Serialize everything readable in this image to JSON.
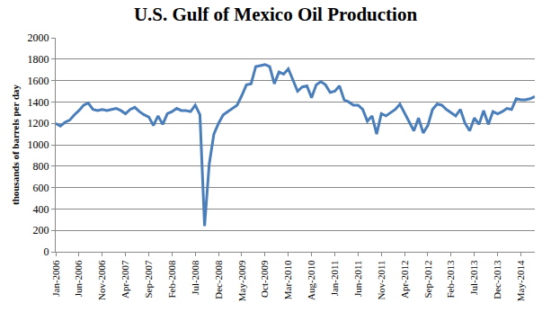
{
  "chart_data": {
    "type": "line",
    "title": "U.S. Gulf of Mexico Oil Production",
    "y_label": "thousands of barrels per day",
    "categories": [
      "Jan-2006",
      null,
      null,
      null,
      null,
      "Jun-2006",
      null,
      null,
      null,
      null,
      "Nov-2006",
      null,
      null,
      null,
      null,
      "Apr-2007",
      null,
      null,
      null,
      null,
      "Sep-2007",
      null,
      null,
      null,
      null,
      "Feb-2008",
      null,
      null,
      null,
      null,
      "Jul-2008",
      null,
      null,
      null,
      null,
      "Dec-2008",
      null,
      null,
      null,
      null,
      "May-2009",
      null,
      null,
      null,
      null,
      "Oct-2009",
      null,
      null,
      null,
      null,
      "Mar-2010",
      null,
      null,
      null,
      null,
      "Aug-2010",
      null,
      null,
      null,
      null,
      "Jan-2011",
      null,
      null,
      null,
      null,
      "Jun-2011",
      null,
      null,
      null,
      null,
      "Nov-2011",
      null,
      null,
      null,
      null,
      "Apr-2012",
      null,
      null,
      null,
      null,
      "Sep-2012",
      null,
      null,
      null,
      null,
      "Feb-2013",
      null,
      null,
      null,
      null,
      "Jul-2013",
      null,
      null,
      null,
      null,
      "Dec-2013",
      null,
      null,
      null,
      null,
      "May-2014",
      null,
      null,
      null
    ],
    "values": [
      1200,
      1175,
      1210,
      1230,
      1280,
      1320,
      1370,
      1390,
      1330,
      1320,
      1330,
      1320,
      1330,
      1340,
      1320,
      1290,
      1330,
      1350,
      1310,
      1280,
      1260,
      1180,
      1270,
      1190,
      1290,
      1310,
      1340,
      1320,
      1320,
      1310,
      1370,
      1280,
      240,
      820,
      1100,
      1200,
      1280,
      1310,
      1340,
      1370,
      1460,
      1560,
      1570,
      1730,
      1740,
      1750,
      1730,
      1570,
      1680,
      1660,
      1710,
      1600,
      1500,
      1540,
      1550,
      1440,
      1560,
      1590,
      1560,
      1490,
      1500,
      1550,
      1420,
      1400,
      1370,
      1370,
      1330,
      1220,
      1270,
      1100,
      1290,
      1270,
      1300,
      1330,
      1380,
      1300,
      1220,
      1130,
      1250,
      1110,
      1180,
      1330,
      1380,
      1370,
      1330,
      1300,
      1270,
      1330,
      1200,
      1130,
      1250,
      1190,
      1320,
      1190,
      1310,
      1290,
      1310,
      1340,
      1330,
      1430,
      1420,
      1420,
      1430,
      1450
    ],
    "color": "#4a7ebb",
    "ylim": [
      0,
      2000
    ],
    "yticks": [
      0,
      200,
      400,
      600,
      800,
      1000,
      1200,
      1400,
      1600,
      1800,
      2000
    ],
    "grid": true
  }
}
